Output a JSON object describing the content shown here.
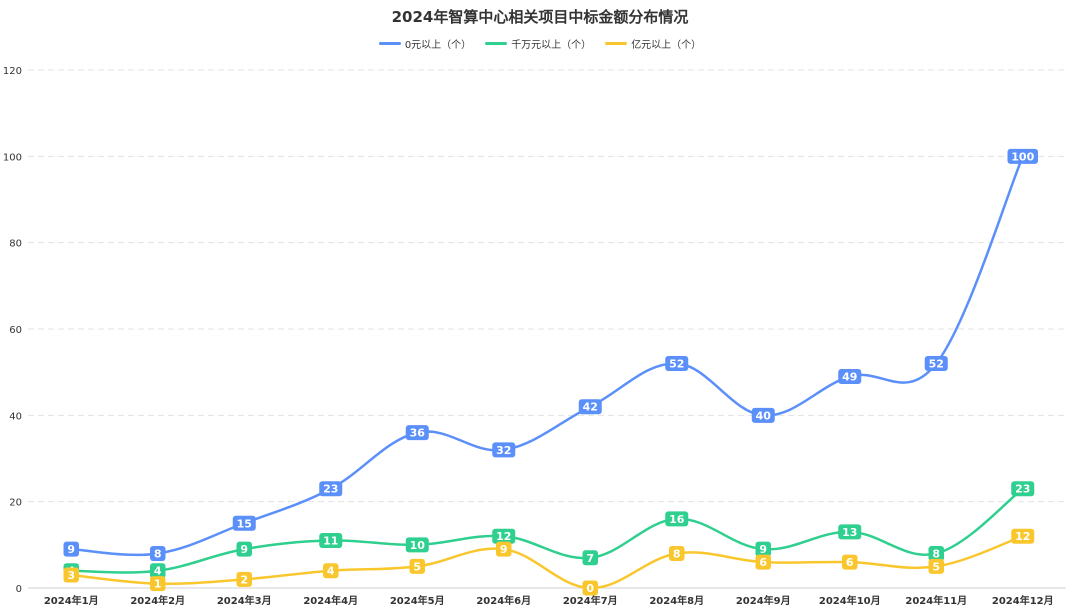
{
  "chart_data": {
    "type": "line",
    "title": "2024年智算中心相关项目中标金额分布情况",
    "categories": [
      "2024年1月",
      "2024年2月",
      "2024年3月",
      "2024年4月",
      "2024年5月",
      "2024年6月",
      "2024年7月",
      "2024年8月",
      "2024年9月",
      "2024年10月",
      "2024年11月",
      "2024年12月"
    ],
    "series": [
      {
        "name": "0元以上（个）",
        "color": "#5b8ff9",
        "values": [
          9,
          8,
          15,
          23,
          36,
          32,
          42,
          52,
          40,
          49,
          52,
          100
        ]
      },
      {
        "name": "千万元以上（个）",
        "color": "#2fcf8f",
        "values": [
          4,
          4,
          9,
          11,
          10,
          12,
          7,
          16,
          9,
          13,
          8,
          23
        ]
      },
      {
        "name": "亿元以上（个）",
        "color": "#f9c72d",
        "values": [
          3,
          1,
          2,
          4,
          5,
          9,
          0,
          8,
          6,
          6,
          5,
          12
        ]
      }
    ],
    "ylim": [
      0,
      120
    ],
    "yticks": [
      "0",
      "20",
      "40",
      "60",
      "80",
      "100",
      "120"
    ],
    "grid": true,
    "legend_position": "top-center"
  }
}
